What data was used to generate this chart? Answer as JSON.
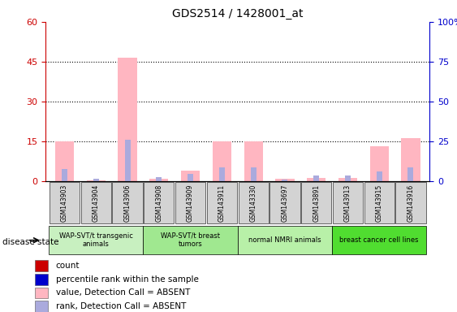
{
  "title": "GDS2514 / 1428001_at",
  "samples": [
    "GSM143903",
    "GSM143904",
    "GSM143906",
    "GSM143908",
    "GSM143909",
    "GSM143911",
    "GSM143330",
    "GSM143697",
    "GSM143891",
    "GSM143913",
    "GSM143915",
    "GSM143916"
  ],
  "pink_bars": [
    14.8,
    0.3,
    46.5,
    0.8,
    4.0,
    14.8,
    14.8,
    0.8,
    1.2,
    1.2,
    13.0,
    16.0
  ],
  "blue_bars": [
    4.5,
    0.8,
    15.5,
    1.5,
    2.8,
    5.0,
    5.0,
    0.5,
    2.2,
    2.2,
    3.5,
    5.0
  ],
  "ylim_left": [
    0,
    60
  ],
  "ylim_right": [
    0,
    100
  ],
  "yticks_left": [
    0,
    15,
    30,
    45,
    60
  ],
  "ytick_labels_right": [
    "0",
    "25",
    "50",
    "75",
    "100%"
  ],
  "actual_groups": [
    {
      "label": "WAP-SVT/t transgenic\nanimals",
      "indices": [
        0,
        1,
        2
      ],
      "color": "#c8f0c0"
    },
    {
      "label": "WAP-SVT/t breast\ntumors",
      "indices": [
        3,
        4,
        5
      ],
      "color": "#a0e890"
    },
    {
      "label": "normal NMRI animals",
      "indices": [
        6,
        7,
        8
      ],
      "color": "#b8f0a8"
    },
    {
      "label": "breast cancer cell lines",
      "indices": [
        9,
        10,
        11
      ],
      "color": "#50dd30"
    }
  ],
  "disease_state_label": "disease state",
  "legend_items": [
    {
      "label": "count",
      "color": "#cc0000"
    },
    {
      "label": "percentile rank within the sample",
      "color": "#0000cc"
    },
    {
      "label": "value, Detection Call = ABSENT",
      "color": "#ffb6c1"
    },
    {
      "label": "rank, Detection Call = ABSENT",
      "color": "#aaaadd"
    }
  ],
  "pink_color": "#ffb6c1",
  "blue_color": "#aaaadd",
  "red_color": "#cc0000",
  "navy_color": "#0000cc",
  "left_axis_color": "#cc0000",
  "right_axis_color": "#0000cc",
  "xtick_bg_color": "#d3d3d3",
  "grid_dotted_at": [
    15,
    30,
    45
  ]
}
